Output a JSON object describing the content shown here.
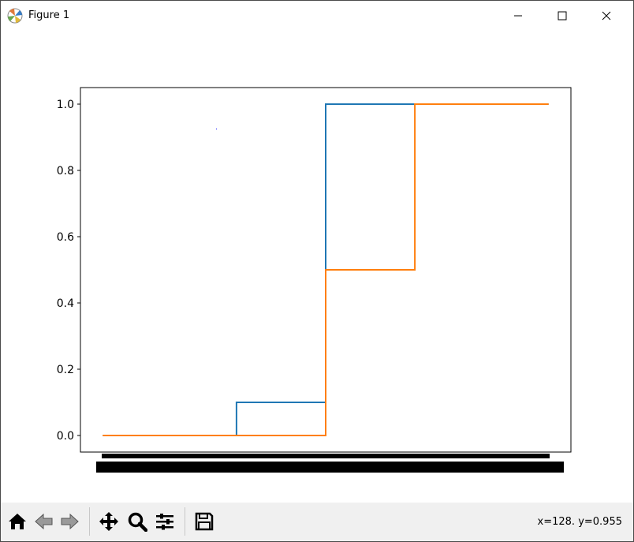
{
  "window": {
    "title": "Figure 1"
  },
  "statusbar": {
    "coords": "x=128. y=0.955"
  },
  "toolbar": {
    "buttons": [
      {
        "name": "home-icon"
      },
      {
        "name": "back-icon"
      },
      {
        "name": "forward-icon"
      },
      {
        "name": "pan-icon"
      },
      {
        "name": "zoom-icon"
      },
      {
        "name": "subplots-icon"
      },
      {
        "name": "save-icon"
      }
    ]
  },
  "chart_data": {
    "type": "line",
    "title": "",
    "xlabel": "",
    "ylabel": "",
    "ylim": [
      -0.05,
      1.05
    ],
    "yticks": [
      "0.0",
      "0.2",
      "0.4",
      "0.6",
      "0.8",
      "1.0"
    ],
    "ytick_values": [
      0.0,
      0.2,
      0.4,
      0.6,
      0.8,
      1.0
    ],
    "x_tick_labels_overlapping": true,
    "series": [
      {
        "color": "#1f77b4",
        "step_x": [
          0,
          0.3,
          0.5,
          0.7,
          1.0
        ],
        "step_y": [
          0.0,
          0.1,
          1.0,
          1.0,
          1.0
        ]
      },
      {
        "color": "#ff7f0e",
        "step_x": [
          0,
          0.3,
          0.5,
          0.7,
          1.0
        ],
        "step_y": [
          0.0,
          0.0,
          0.5,
          1.0,
          1.0
        ]
      }
    ]
  }
}
